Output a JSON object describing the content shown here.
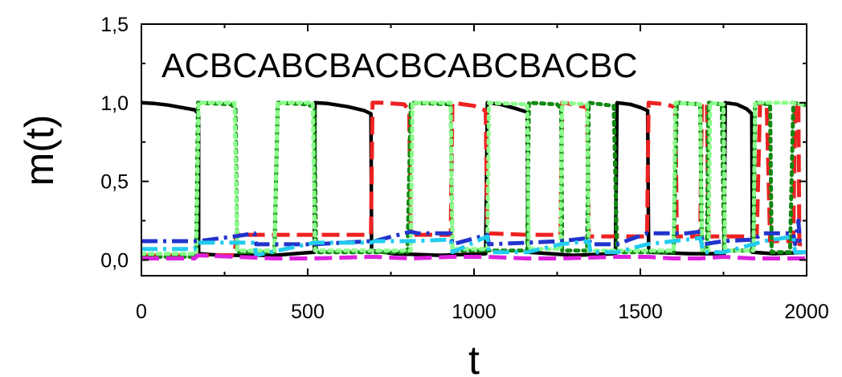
{
  "chart_data": {
    "type": "line",
    "title": "",
    "xlabel": "t",
    "ylabel": "m(t)",
    "annotation": "ACBCABCBACBCABCBACBC",
    "xlim": [
      0,
      2000
    ],
    "ylim": [
      -0.1,
      1.5
    ],
    "xticks": [
      0,
      500,
      1000,
      1500,
      2000
    ],
    "xtick_labels": [
      "0",
      "500",
      "1000",
      "1500",
      "2000"
    ],
    "yticks": [
      0.0,
      0.5,
      1.0,
      1.5
    ],
    "ytick_labels": [
      "0,0",
      "0,5",
      "1,0",
      "1,5"
    ],
    "grid": false,
    "legend": "none",
    "series": [
      {
        "color": "#000000",
        "dash": "solid",
        "points": [
          [
            0,
            1.0
          ],
          [
            40,
            0.995
          ],
          [
            80,
            0.985
          ],
          [
            120,
            0.97
          ],
          [
            160,
            0.955
          ],
          [
            172,
            0.93
          ],
          [
            172,
            0.04
          ],
          [
            240,
            0.03
          ],
          [
            400,
            0.03
          ],
          [
            520,
            0.05
          ],
          [
            522,
            1.0
          ],
          [
            560,
            0.995
          ],
          [
            620,
            0.975
          ],
          [
            670,
            0.95
          ],
          [
            690,
            0.93
          ],
          [
            692,
            0.06
          ],
          [
            760,
            0.04
          ],
          [
            900,
            0.03
          ],
          [
            1035,
            0.04
          ],
          [
            1040,
            1.0
          ],
          [
            1080,
            0.99
          ],
          [
            1130,
            0.96
          ],
          [
            1160,
            0.94
          ],
          [
            1162,
            0.05
          ],
          [
            1300,
            0.03
          ],
          [
            1425,
            0.04
          ],
          [
            1430,
            1.0
          ],
          [
            1470,
            0.99
          ],
          [
            1500,
            0.97
          ],
          [
            1522,
            0.95
          ],
          [
            1525,
            0.05
          ],
          [
            1650,
            0.04
          ],
          [
            1752,
            0.04
          ],
          [
            1755,
            1.0
          ],
          [
            1790,
            0.99
          ],
          [
            1820,
            0.96
          ],
          [
            1835,
            0.93
          ],
          [
            1837,
            0.05
          ],
          [
            1900,
            0.04
          ],
          [
            2000,
            0.05
          ]
        ]
      },
      {
        "color": "#ee2222",
        "dash": "dashed",
        "points": [
          [
            0,
            0.03
          ],
          [
            280,
            0.03
          ],
          [
            285,
            0.16
          ],
          [
            300,
            0.16
          ],
          [
            420,
            0.16
          ],
          [
            520,
            0.16
          ],
          [
            690,
            0.16
          ],
          [
            695,
            1.0
          ],
          [
            720,
            1.0
          ],
          [
            790,
            0.99
          ],
          [
            805,
            0.95
          ],
          [
            810,
            0.16
          ],
          [
            930,
            0.16
          ],
          [
            935,
            1.0
          ],
          [
            1000,
            0.98
          ],
          [
            1035,
            0.95
          ],
          [
            1040,
            0.17
          ],
          [
            1160,
            0.16
          ],
          [
            1260,
            0.16
          ],
          [
            1265,
            1.0
          ],
          [
            1300,
            0.99
          ],
          [
            1340,
            0.97
          ],
          [
            1345,
            0.15
          ],
          [
            1520,
            0.15
          ],
          [
            1525,
            1.0
          ],
          [
            1580,
            0.99
          ],
          [
            1605,
            0.97
          ],
          [
            1610,
            0.15
          ],
          [
            1680,
            0.15
          ],
          [
            1685,
            1.0
          ],
          [
            1700,
            0.99
          ],
          [
            1705,
            0.15
          ],
          [
            1850,
            0.15
          ],
          [
            1860,
            1.0
          ],
          [
            1880,
            0.99
          ],
          [
            1890,
            0.12
          ],
          [
            1960,
            0.12
          ],
          [
            1965,
            1.0
          ],
          [
            1975,
            0.99
          ],
          [
            1978,
            0.1
          ],
          [
            2000,
            0.1
          ]
        ]
      },
      {
        "color": "#118811",
        "dash": "dotted",
        "points": [
          [
            0,
            0.02
          ],
          [
            165,
            0.02
          ],
          [
            170,
            1.0
          ],
          [
            270,
            0.99
          ],
          [
            283,
            0.96
          ],
          [
            288,
            0.05
          ],
          [
            400,
            0.05
          ],
          [
            410,
            1.0
          ],
          [
            500,
            0.99
          ],
          [
            520,
            0.97
          ],
          [
            525,
            0.05
          ],
          [
            690,
            0.05
          ],
          [
            700,
            0.05
          ],
          [
            800,
            0.05
          ],
          [
            810,
            1.0
          ],
          [
            930,
            0.99
          ],
          [
            935,
            0.06
          ],
          [
            1160,
            0.06
          ],
          [
            1165,
            1.0
          ],
          [
            1250,
            0.99
          ],
          [
            1262,
            0.96
          ],
          [
            1265,
            0.06
          ],
          [
            1340,
            0.06
          ],
          [
            1345,
            1.0
          ],
          [
            1420,
            0.98
          ],
          [
            1430,
            0.05
          ],
          [
            1600,
            0.05
          ],
          [
            1610,
            1.0
          ],
          [
            1680,
            0.99
          ],
          [
            1685,
            0.06
          ],
          [
            1700,
            0.06
          ],
          [
            1705,
            1.0
          ],
          [
            1745,
            0.99
          ],
          [
            1752,
            0.06
          ],
          [
            1840,
            0.06
          ],
          [
            1845,
            1.0
          ],
          [
            1890,
            0.99
          ],
          [
            1895,
            0.05
          ],
          [
            1950,
            0.05
          ],
          [
            1960,
            1.0
          ],
          [
            1990,
            0.99
          ],
          [
            2000,
            0.97
          ]
        ]
      },
      {
        "color": "#8cff8c",
        "dash": "dotted",
        "points": [
          [
            0,
            0.04
          ],
          [
            165,
            0.04
          ],
          [
            172,
            1.0
          ],
          [
            280,
            1.0
          ],
          [
            288,
            0.06
          ],
          [
            400,
            0.06
          ],
          [
            410,
            1.0
          ],
          [
            515,
            1.0
          ],
          [
            522,
            0.06
          ],
          [
            810,
            0.06
          ],
          [
            815,
            1.0
          ],
          [
            930,
            1.0
          ],
          [
            935,
            0.07
          ],
          [
            1040,
            0.07
          ],
          [
            1045,
            1.0
          ],
          [
            1160,
            0.99
          ],
          [
            1165,
            0.07
          ],
          [
            1260,
            0.07
          ],
          [
            1265,
            1.0
          ],
          [
            1340,
            0.99
          ],
          [
            1345,
            0.06
          ],
          [
            1600,
            0.06
          ],
          [
            1605,
            1.0
          ],
          [
            1680,
            0.99
          ],
          [
            1685,
            0.06
          ],
          [
            1705,
            0.06
          ],
          [
            1710,
            1.0
          ],
          [
            1750,
            0.99
          ],
          [
            1755,
            0.06
          ],
          [
            1840,
            0.06
          ],
          [
            1845,
            1.0
          ],
          [
            1960,
            1.0
          ],
          [
            2000,
            0.98
          ]
        ]
      },
      {
        "color": "#2233cc",
        "dash": "dashdot",
        "points": [
          [
            0,
            0.12
          ],
          [
            160,
            0.12
          ],
          [
            170,
            0.12
          ],
          [
            280,
            0.15
          ],
          [
            340,
            0.17
          ],
          [
            345,
            0.1
          ],
          [
            520,
            0.1
          ],
          [
            690,
            0.12
          ],
          [
            700,
            0.12
          ],
          [
            810,
            0.18
          ],
          [
            830,
            0.17
          ],
          [
            930,
            0.17
          ],
          [
            935,
            0.1
          ],
          [
            1040,
            0.16
          ],
          [
            1045,
            0.1
          ],
          [
            1160,
            0.11
          ],
          [
            1260,
            0.12
          ],
          [
            1345,
            0.14
          ],
          [
            1350,
            0.1
          ],
          [
            1430,
            0.1
          ],
          [
            1520,
            0.17
          ],
          [
            1600,
            0.17
          ],
          [
            1640,
            0.17
          ],
          [
            1680,
            0.18
          ],
          [
            1690,
            0.1
          ],
          [
            1750,
            0.12
          ],
          [
            1840,
            0.13
          ],
          [
            1870,
            0.17
          ],
          [
            1960,
            0.17
          ],
          [
            1965,
            0.1
          ],
          [
            1975,
            0.25
          ],
          [
            1980,
            0.12
          ],
          [
            2000,
            0.12
          ]
        ]
      },
      {
        "color": "#22ccee",
        "dash": "dashdot",
        "points": [
          [
            0,
            0.07
          ],
          [
            160,
            0.07
          ],
          [
            170,
            0.11
          ],
          [
            280,
            0.11
          ],
          [
            340,
            0.11
          ],
          [
            345,
            0.03
          ],
          [
            520,
            0.11
          ],
          [
            690,
            0.11
          ],
          [
            700,
            0.12
          ],
          [
            810,
            0.12
          ],
          [
            930,
            0.13
          ],
          [
            935,
            0.05
          ],
          [
            1040,
            0.15
          ],
          [
            1045,
            0.05
          ],
          [
            1160,
            0.05
          ],
          [
            1260,
            0.1
          ],
          [
            1345,
            0.12
          ],
          [
            1350,
            0.05
          ],
          [
            1430,
            0.05
          ],
          [
            1520,
            0.1
          ],
          [
            1600,
            0.12
          ],
          [
            1680,
            0.14
          ],
          [
            1690,
            0.05
          ],
          [
            1750,
            0.05
          ],
          [
            1840,
            0.1
          ],
          [
            1870,
            0.12
          ],
          [
            1960,
            0.15
          ],
          [
            1965,
            0.05
          ],
          [
            2000,
            0.05
          ]
        ]
      },
      {
        "color": "#dd22dd",
        "dash": "dashed",
        "points": [
          [
            0,
            0.01
          ],
          [
            160,
            0.01
          ],
          [
            170,
            0.03
          ],
          [
            280,
            0.02
          ],
          [
            400,
            0.01
          ],
          [
            520,
            0.01
          ],
          [
            690,
            0.02
          ],
          [
            700,
            0.02
          ],
          [
            810,
            0.01
          ],
          [
            930,
            0.02
          ],
          [
            1040,
            0.02
          ],
          [
            1160,
            0.01
          ],
          [
            1260,
            0.01
          ],
          [
            1430,
            0.02
          ],
          [
            1520,
            0.02
          ],
          [
            1600,
            0.01
          ],
          [
            1680,
            0.01
          ],
          [
            1750,
            0.02
          ],
          [
            1840,
            0.01
          ],
          [
            1960,
            0.01
          ],
          [
            2000,
            0.01
          ]
        ]
      }
    ]
  }
}
